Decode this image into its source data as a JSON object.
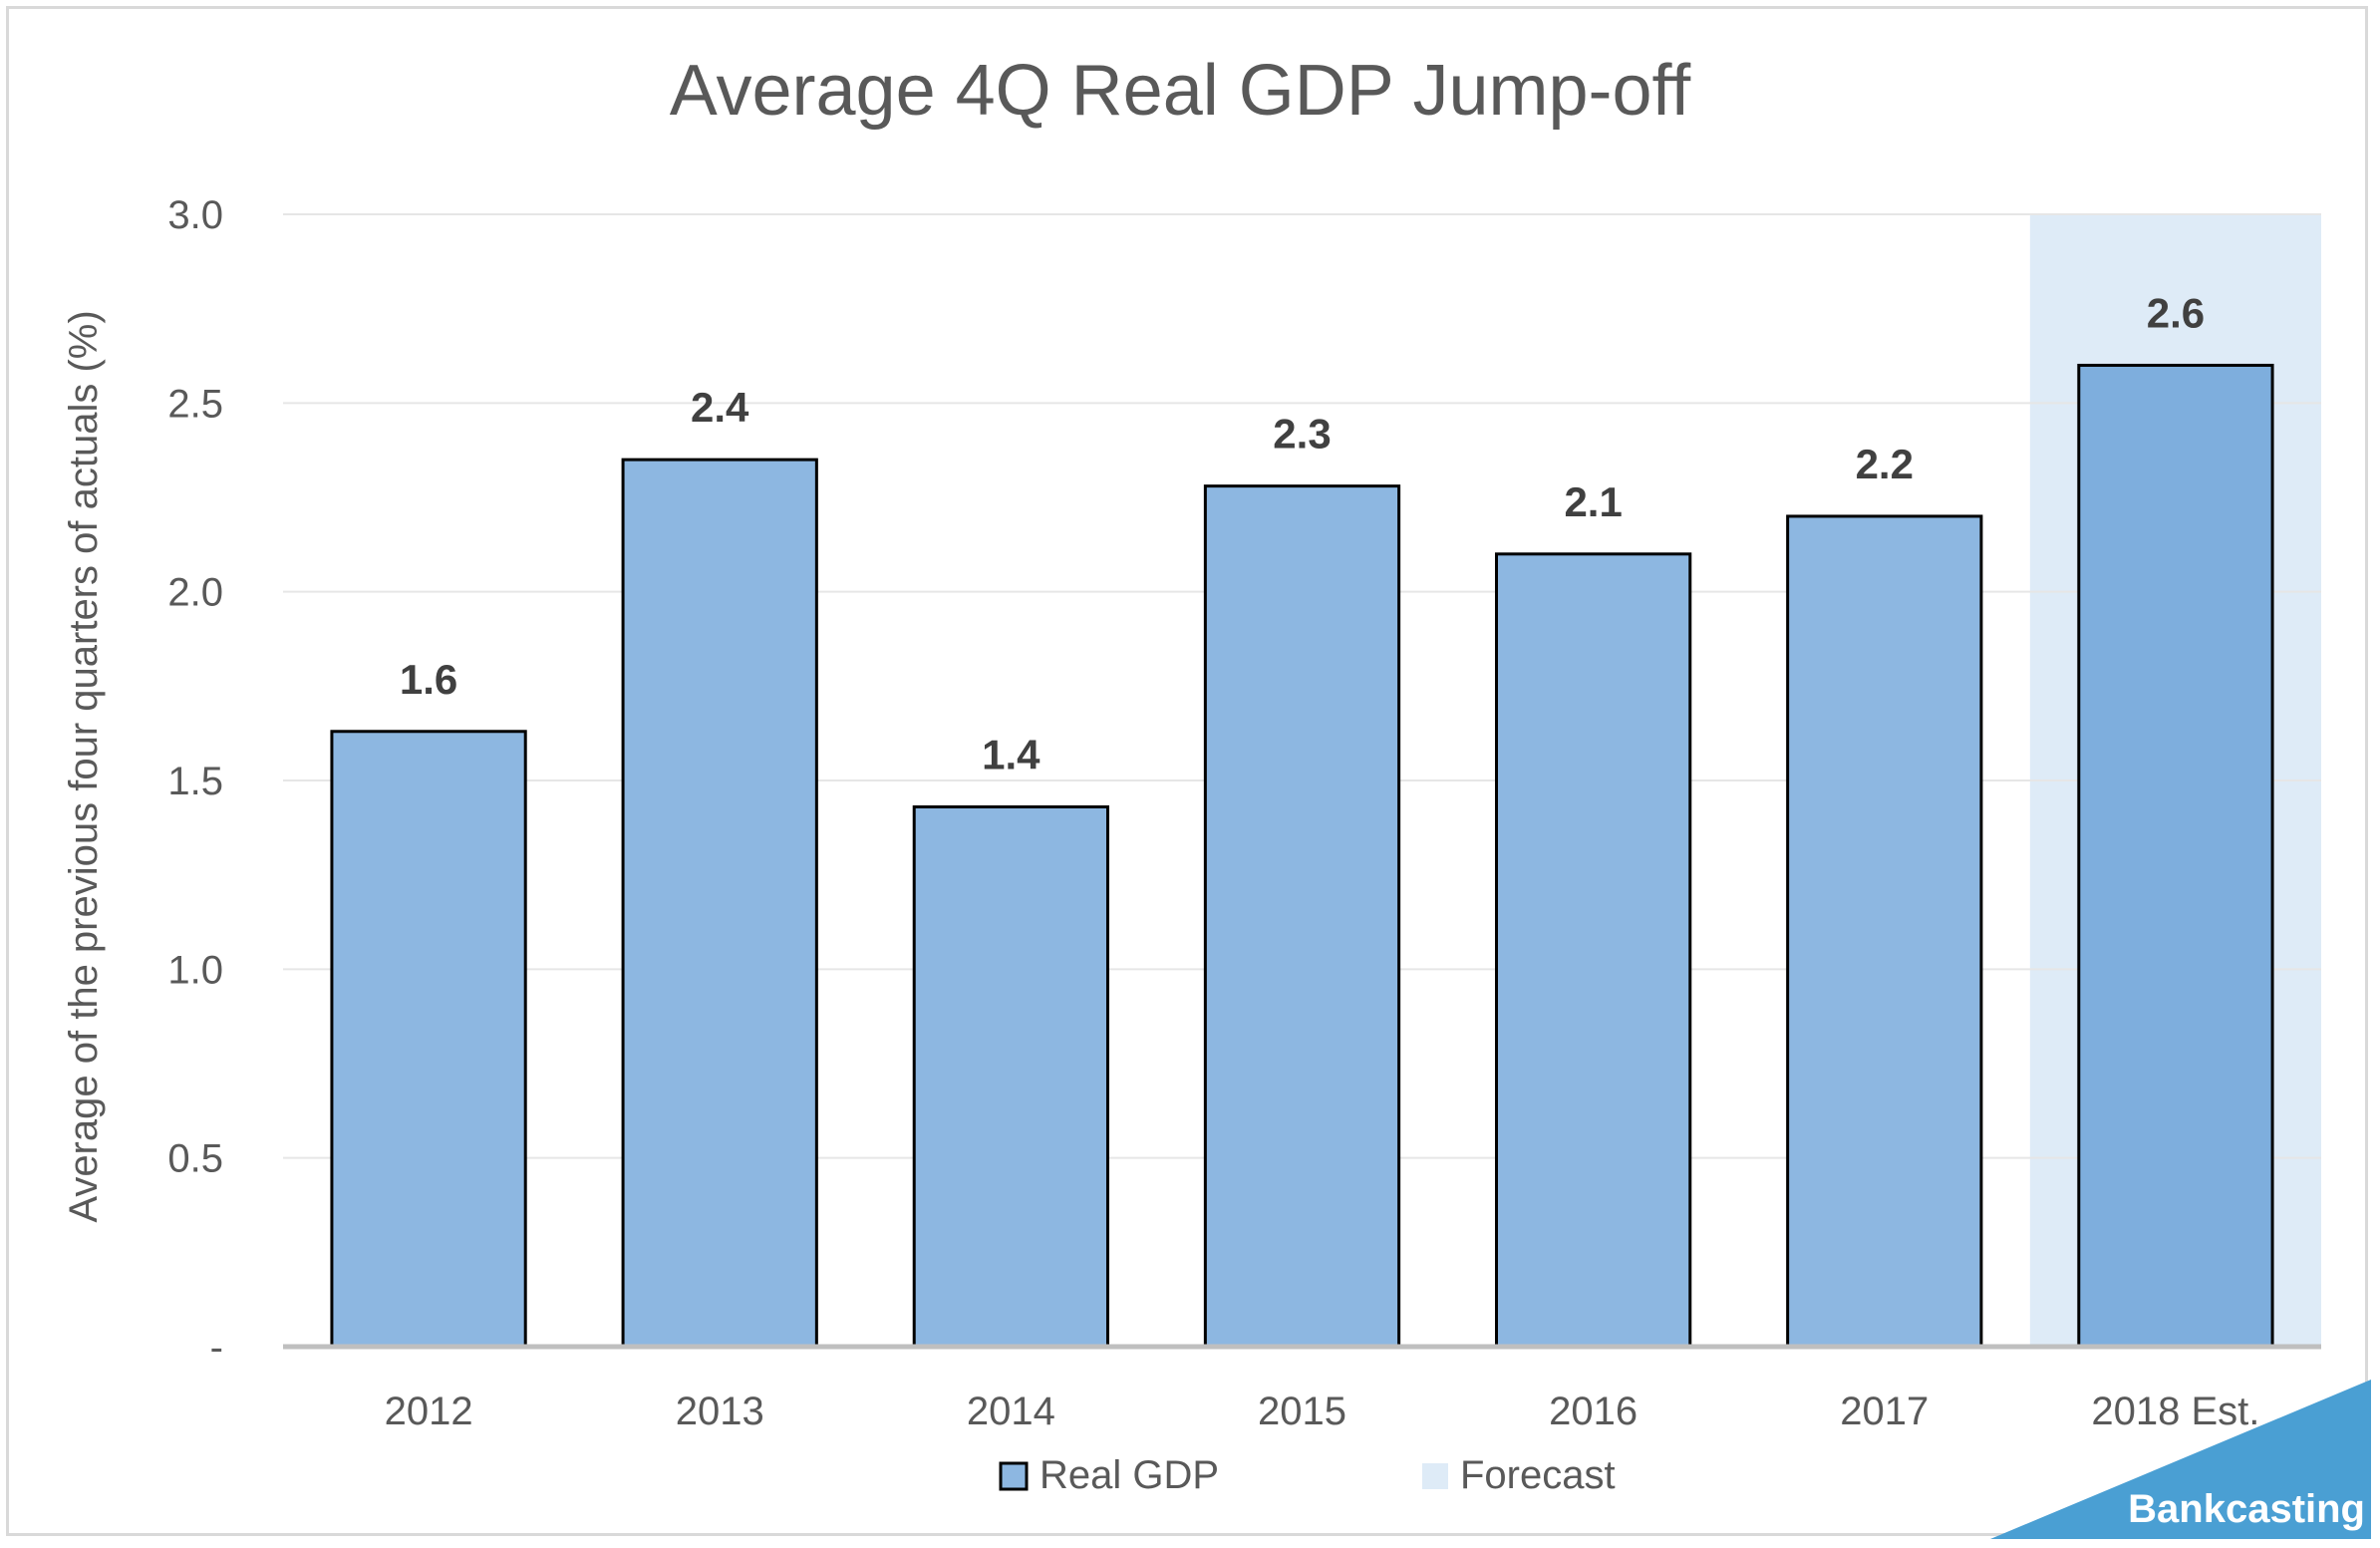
{
  "chart_data": {
    "type": "bar",
    "title": "Average 4Q Real GDP Jump-off",
    "ylabel": "Average of the previous four quarters of actuals (%)",
    "xlabel": "",
    "categories": [
      "2012",
      "2013",
      "2014",
      "2015",
      "2016",
      "2017",
      "2018 Est."
    ],
    "series": [
      {
        "name": "Real GDP",
        "values": [
          1.63,
          2.35,
          1.43,
          2.28,
          2.1,
          2.2,
          2.6
        ],
        "labels": [
          "1.6",
          "2.4",
          "1.4",
          "2.3",
          "2.1",
          "2.2",
          "2.6"
        ],
        "color": "#8db7e1"
      }
    ],
    "forecast": {
      "name": "Forecast",
      "category": "2018 Est.",
      "color": "#deebf7"
    },
    "forecast_bar_color": "#7eaedd",
    "ylim": [
      0,
      3
    ],
    "yticks": [
      0,
      0.5,
      1.0,
      1.5,
      2.0,
      2.5,
      3.0
    ],
    "ytick_labels": [
      "-",
      "0.5",
      "1.0",
      "1.5",
      "2.0",
      "2.5",
      "3.0"
    ],
    "grid": true,
    "legend_position": "bottom",
    "legend": [
      "Real GDP",
      "Forecast"
    ]
  },
  "brand": {
    "text": "Bankcasting",
    "color": "#4a9fd3"
  }
}
